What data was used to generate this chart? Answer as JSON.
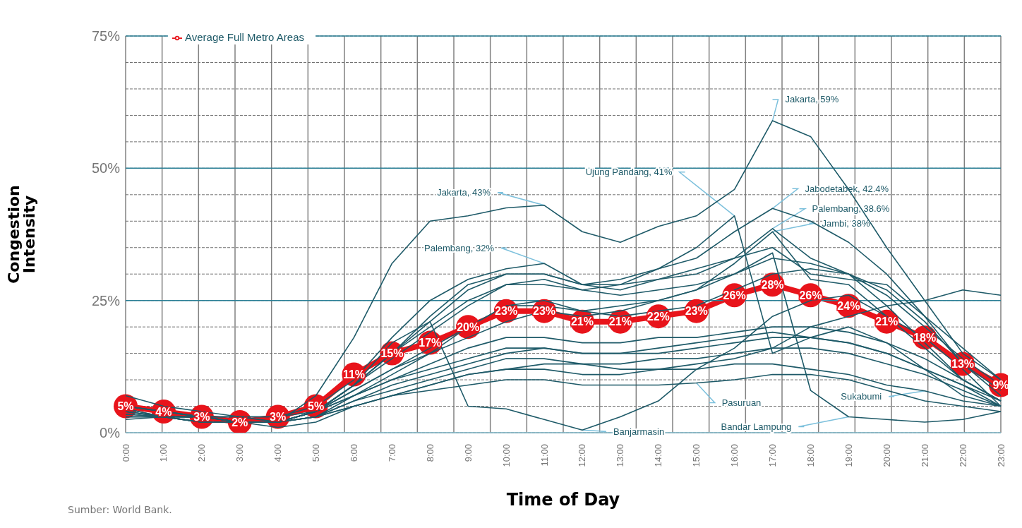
{
  "chart_data": {
    "type": "line",
    "xlabel": "Time of Day",
    "ylabel": "Congestion Intensity",
    "categories": [
      "0:00",
      "1:00",
      "2:00",
      "3:00",
      "4:00",
      "5:00",
      "6:00",
      "7:00",
      "8:00",
      "9:00",
      "10:00",
      "11:00",
      "12:00",
      "13:00",
      "14:00",
      "15:00",
      "16:00",
      "17:00",
      "18:00",
      "19:00",
      "20:00",
      "21:00",
      "22:00",
      "23:00"
    ],
    "ylim": [
      0,
      75
    ],
    "yticks": [
      {
        "value": 0,
        "label": "0%"
      },
      {
        "value": 5,
        "label": null
      },
      {
        "value": 10,
        "label": null
      },
      {
        "value": 15,
        "label": null
      },
      {
        "value": 20,
        "label": null
      },
      {
        "value": 25,
        "label": "25%"
      },
      {
        "value": 30,
        "label": null
      },
      {
        "value": 35,
        "label": null
      },
      {
        "value": 40,
        "label": null
      },
      {
        "value": 45,
        "label": null
      },
      {
        "value": 50,
        "label": "50%"
      },
      {
        "value": 55,
        "label": null
      },
      {
        "value": 60,
        "label": null
      },
      {
        "value": 65,
        "label": null
      },
      {
        "value": 70,
        "label": null
      },
      {
        "value": 75,
        "label": "75%"
      }
    ],
    "grid": true,
    "legend": "top left",
    "line_style": "solid",
    "series": [
      {
        "color": "#1e5a68",
        "marker": "none",
        "values": [
          7,
          5,
          4,
          3,
          2,
          7,
          18,
          32,
          40,
          41,
          42.5,
          43,
          38,
          36,
          39,
          41,
          46,
          59,
          56,
          46,
          35,
          25,
          15,
          10
        ]
      },
      {
        "color": "#1e5a68",
        "marker": "none",
        "values": [
          4,
          3,
          3,
          2,
          2,
          4,
          9,
          15,
          20,
          25,
          28,
          28,
          27,
          28,
          31,
          35,
          41,
          15,
          18,
          20,
          17,
          12,
          7,
          5
        ]
      },
      {
        "color": "#1e5a68",
        "marker": "none",
        "values": [
          5,
          4,
          3,
          3,
          2,
          4,
          9,
          15,
          21,
          27,
          30,
          30,
          28,
          29,
          31,
          33,
          38,
          42.4,
          40,
          36,
          30,
          22,
          13,
          8
        ]
      },
      {
        "color": "#1e5a68",
        "marker": "none",
        "values": [
          5,
          4,
          3,
          3,
          3,
          5,
          10,
          18,
          25,
          29,
          31,
          32,
          28,
          27,
          29,
          30,
          33,
          38.6,
          33,
          30,
          24,
          17,
          10,
          6
        ]
      },
      {
        "color": "#1e5a68",
        "marker": "none",
        "values": [
          4,
          3,
          3,
          2,
          2,
          4,
          8,
          12,
          15,
          18,
          21,
          23,
          22,
          23,
          25,
          27,
          32,
          38,
          29,
          28,
          22,
          16,
          10,
          6
        ]
      },
      {
        "color": "#1e5a68",
        "marker": "none",
        "values": [
          3.5,
          3,
          3,
          2,
          2,
          4,
          9,
          17,
          21,
          5,
          4.5,
          2.5,
          0.5,
          3,
          6,
          12,
          16,
          22,
          25,
          26,
          22,
          18,
          12,
          5
        ]
      },
      {
        "color": "#1e5a68",
        "marker": "none",
        "values": [
          4,
          3,
          3,
          2,
          2,
          4,
          7,
          11,
          15,
          20,
          24,
          24,
          23,
          24,
          25,
          27,
          30,
          34,
          8,
          3,
          2.5,
          2,
          2.5,
          4
        ]
      },
      {
        "color": "#1e5a68",
        "marker": "none",
        "values": [
          3,
          3,
          2,
          2,
          2,
          3,
          5,
          7,
          8,
          9,
          10,
          10,
          9,
          9,
          9,
          9.4,
          10,
          11,
          11,
          10,
          8,
          6,
          5,
          4
        ]
      },
      {
        "color": "#1e5a68",
        "marker": "none",
        "values": [
          3,
          3,
          2,
          2,
          2,
          3,
          5,
          7,
          9,
          11,
          12,
          12,
          11,
          11,
          12,
          12,
          13,
          13,
          12,
          11,
          9,
          7.9,
          6,
          5
        ]
      },
      {
        "color": "#1e5a68",
        "marker": "none",
        "values": [
          4,
          3,
          3,
          2,
          2,
          4,
          9,
          14,
          19,
          24,
          28,
          29,
          27,
          26,
          27,
          28,
          30,
          33,
          32,
          30,
          26,
          20,
          14,
          9
        ]
      },
      {
        "color": "#1e5a68",
        "marker": "none",
        "values": [
          5,
          4,
          3,
          2,
          2,
          4,
          8,
          12,
          16,
          20,
          24,
          25,
          23,
          22,
          23,
          24,
          27,
          30,
          31,
          30,
          27,
          21,
          13,
          7
        ]
      },
      {
        "color": "#1e5a68",
        "marker": "none",
        "values": [
          3.5,
          3,
          2,
          2,
          2,
          3,
          7,
          10,
          13,
          16,
          18,
          18,
          17,
          17,
          18,
          18,
          19,
          20,
          20,
          19,
          17,
          14,
          10,
          6
        ]
      },
      {
        "color": "#1e5a68",
        "marker": "none",
        "values": [
          2.5,
          3,
          2,
          2,
          2,
          3,
          6,
          8,
          10,
          12,
          14,
          14,
          13,
          13,
          14,
          14,
          15,
          16,
          16,
          15,
          13,
          11,
          8,
          5
        ]
      },
      {
        "color": "#1e5a68",
        "marker": "none",
        "values": [
          4.5,
          3,
          3,
          2,
          2,
          4,
          7,
          10,
          12,
          14,
          16,
          16,
          15,
          15,
          15,
          16,
          17,
          18,
          18,
          17,
          15,
          12,
          9,
          5
        ]
      },
      {
        "color": "#1e5a68",
        "marker": "none",
        "values": [
          3,
          3,
          2,
          2,
          1,
          2,
          5,
          7,
          9,
          11,
          12,
          13,
          13,
          12,
          12,
          13,
          14,
          16,
          20,
          22,
          24,
          25,
          27,
          26
        ]
      },
      {
        "color": "#1e5a68",
        "marker": "none",
        "values": [
          5,
          4,
          3,
          3,
          3,
          4,
          9,
          15,
          22,
          28,
          30,
          30,
          28,
          28,
          29,
          31,
          33,
          35,
          30,
          29,
          28,
          22,
          16,
          10
        ]
      },
      {
        "color": "#1e5a68",
        "marker": "none",
        "values": [
          4.5,
          3,
          3,
          2,
          2,
          3,
          6,
          9,
          11,
          13,
          15,
          16,
          15,
          15,
          16,
          17,
          18,
          19,
          18,
          17,
          15,
          12,
          9,
          6
        ]
      },
      {
        "name": "Average Full Metro Areas",
        "color": "#e8141b",
        "marker": "circle",
        "values": [
          5,
          4,
          3,
          2,
          3,
          5,
          11,
          15,
          17,
          20,
          23,
          23,
          21,
          21,
          22,
          23,
          26,
          28,
          26,
          24,
          21,
          18,
          13,
          9
        ],
        "value_labels": [
          "5%",
          "4%",
          "3%",
          "2%",
          "3%",
          "5%",
          "11%",
          "15%",
          "17%",
          "20%",
          "23%",
          "23%",
          "21%",
          "21%",
          "22%",
          "23%",
          "26%",
          "28%",
          "26%",
          "24%",
          "21%",
          "18%",
          "13%",
          "9%"
        ]
      }
    ],
    "annotations": [
      {
        "text": "Jakarta, 59%",
        "x": "17:00",
        "y": 59
      },
      {
        "text": "Jakarta, 43%",
        "x": "11:00",
        "y": 43
      },
      {
        "text": "Ujung Pandang, 41%",
        "x": "16:00",
        "y": 41
      },
      {
        "text": "Jabodetabek, 42.4%",
        "x": "17:00",
        "y": 42.4
      },
      {
        "text": "Palembang, 38.6%",
        "x": "17:00",
        "y": 38.6
      },
      {
        "text": "Jambi, 38%",
        "x": "17:00",
        "y": 38
      },
      {
        "text": "Palembang, 32%",
        "x": "11:00",
        "y": 32
      },
      {
        "text": "Banjarmasin",
        "x": "12:00",
        "y": 0.5
      },
      {
        "text": "Pasuruan",
        "x": "15:00",
        "y": 9.4
      },
      {
        "text": "Bandar Lampung",
        "x": "19:00",
        "y": 3
      },
      {
        "text": "Sukabumi",
        "x": "21:00",
        "y": 7.9
      },
      "Sumber: World Bank."
    ]
  }
}
